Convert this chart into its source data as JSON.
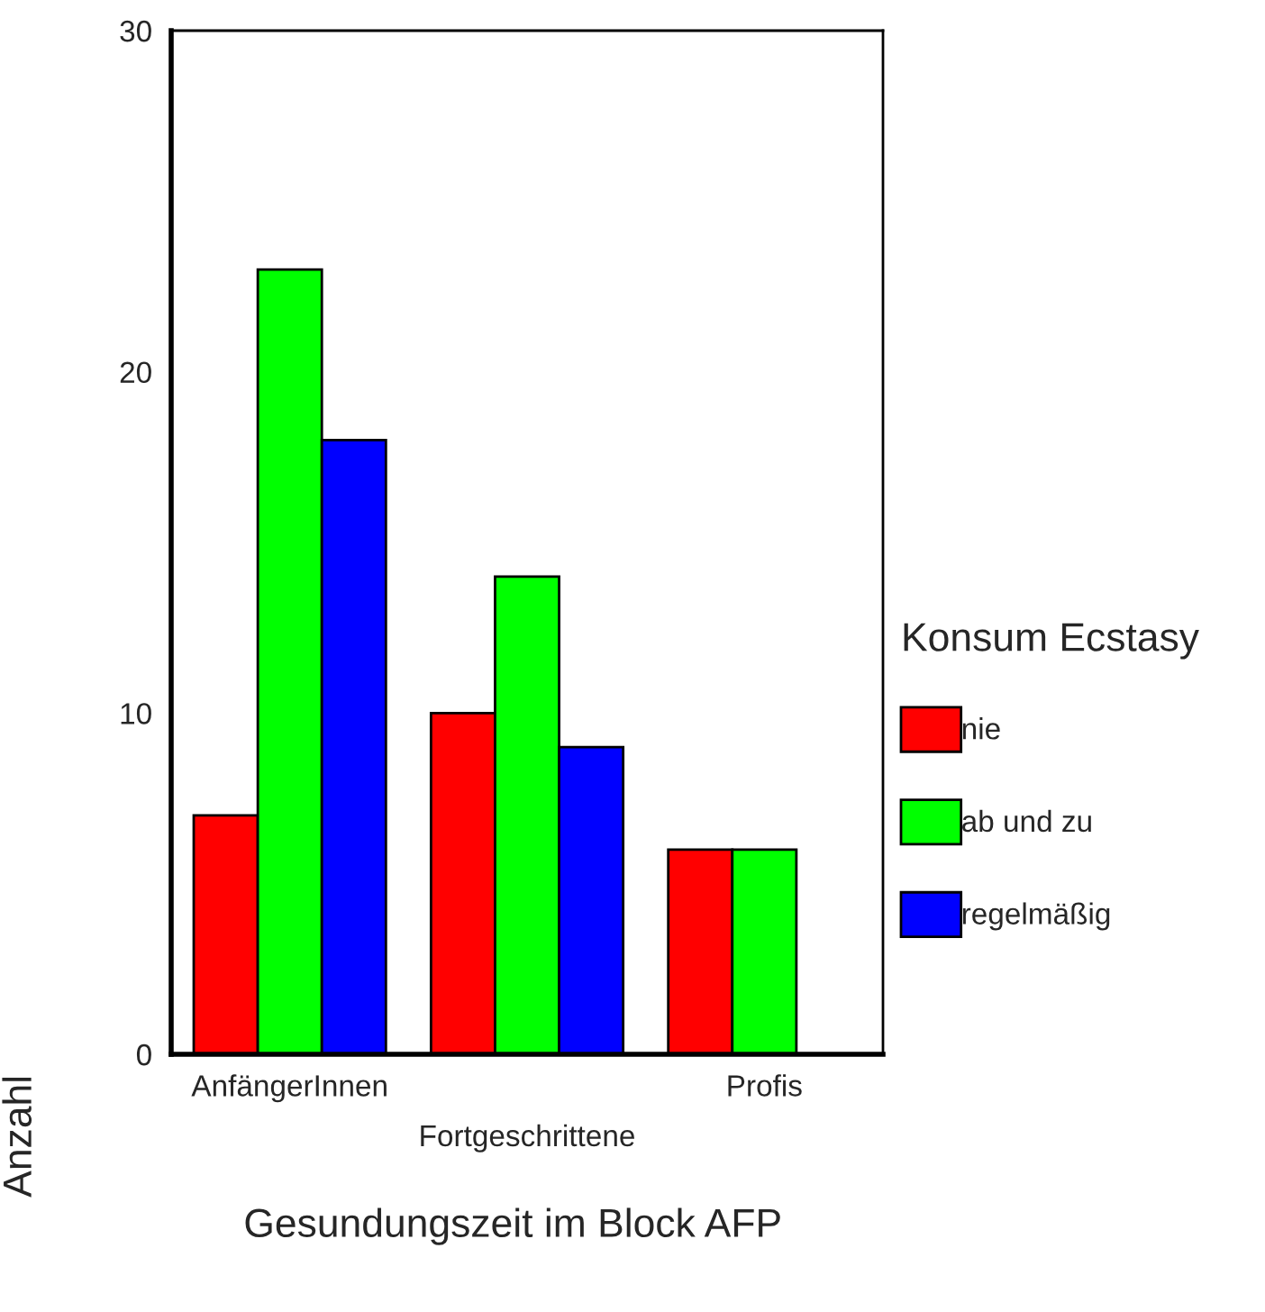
{
  "chart_data": {
    "type": "bar",
    "categories": [
      "AnfängerInnen",
      "Fortgeschrittene",
      "Profis"
    ],
    "series": [
      {
        "name": "nie",
        "color": "#ff0000",
        "values": [
          7,
          10,
          6
        ]
      },
      {
        "name": "ab und zu",
        "color": "#00ff00",
        "values": [
          23,
          14,
          6
        ]
      },
      {
        "name": "regelmäßig",
        "color": "#0000ff",
        "values": [
          18,
          9,
          null
        ]
      }
    ],
    "xlabel": "Gesundungszeit im Block AFP",
    "ylabel": "Anzahl",
    "legend_title": "Konsum Ecstasy",
    "ylim": [
      0,
      30
    ],
    "yticks": [
      0,
      10,
      20,
      30
    ],
    "grid": false,
    "legend": "right"
  }
}
